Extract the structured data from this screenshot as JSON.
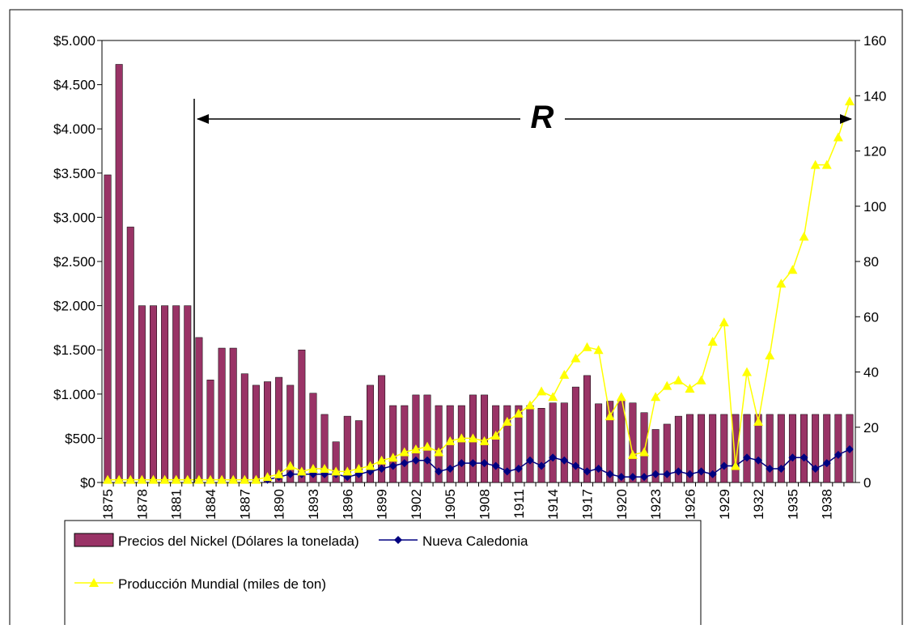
{
  "chart_data": {
    "type": "bar-line",
    "annotation": "R",
    "categories": [
      "1875",
      null,
      null,
      "1878",
      null,
      null,
      "1881",
      null,
      null,
      "1884",
      null,
      null,
      "1887",
      null,
      null,
      "1890",
      null,
      null,
      "1893",
      null,
      null,
      "1896",
      null,
      null,
      "1899",
      null,
      null,
      "1902",
      null,
      null,
      "1905",
      null,
      null,
      "1908",
      null,
      null,
      "1911",
      null,
      null,
      "1914",
      null,
      null,
      "1917",
      null,
      null,
      "1920",
      null,
      null,
      "1923",
      null,
      null,
      "1926",
      null,
      null,
      "1929",
      null,
      null,
      "1932",
      null,
      null,
      "1935",
      null,
      null,
      "1938",
      null,
      null
    ],
    "series": [
      {
        "name": "Precios del Nickel (Dólares la tonelada)",
        "color": "#993366",
        "kind": "bar",
        "axis": "y",
        "values": [
          3480,
          4730,
          2890,
          2000,
          2000,
          2000,
          2000,
          2000,
          1640,
          1160,
          1520,
          1520,
          1230,
          1100,
          1140,
          1190,
          1100,
          1500,
          1010,
          770,
          460,
          750,
          700,
          1100,
          1210,
          870,
          870,
          990,
          990,
          870,
          870,
          870,
          990,
          990,
          870,
          870,
          870,
          870,
          840,
          900,
          900,
          1080,
          1210,
          890,
          920,
          930,
          900,
          790,
          600,
          660,
          750,
          770,
          770,
          770,
          770,
          770,
          770,
          770,
          770,
          770,
          770,
          770,
          770,
          770,
          770,
          770
        ]
      },
      {
        "name": "Nueva Caledonia",
        "color": "#000080",
        "kind": "line",
        "marker": "diamond",
        "axis": "y2",
        "values": [
          null,
          null,
          null,
          null,
          null,
          null,
          null,
          null,
          null,
          null,
          null,
          null,
          null,
          null,
          1,
          2,
          3,
          3,
          3,
          3,
          3,
          2,
          3,
          4,
          5,
          6,
          7,
          8,
          8,
          4,
          5,
          7,
          7,
          7,
          6,
          4,
          5,
          8,
          6,
          9,
          8,
          6,
          4,
          5,
          3,
          2,
          2,
          2,
          3,
          3,
          4,
          3,
          4,
          3,
          6,
          6,
          9,
          8,
          5,
          5,
          9,
          9,
          5,
          7,
          10,
          12
        ]
      },
      {
        "name": "Producción Mundial (miles de ton)",
        "color": "#FFFF00",
        "kind": "line",
        "marker": "triangle",
        "axis": "y2",
        "values": [
          1,
          1,
          1,
          1,
          1,
          1,
          1,
          1,
          1,
          1,
          1,
          1,
          1,
          1,
          2,
          3,
          6,
          4,
          5,
          5,
          4,
          4,
          5,
          6,
          8,
          9,
          11,
          12,
          13,
          11,
          15,
          16,
          16,
          15,
          17,
          22,
          25,
          28,
          33,
          31,
          39,
          45,
          49,
          48,
          24,
          31,
          10,
          11,
          31,
          35,
          37,
          34,
          37,
          51,
          58,
          6,
          40,
          22,
          46,
          72,
          77,
          89,
          115,
          115,
          125,
          138
        ]
      }
    ],
    "ylim": [
      0,
      5000
    ],
    "yticks": [
      {
        "value": 0,
        "label": "$0"
      },
      {
        "value": 500,
        "label": "$500"
      },
      {
        "value": 1000,
        "label": "$1.000"
      },
      {
        "value": 1500,
        "label": "$1.500"
      },
      {
        "value": 2000,
        "label": "$2.000"
      },
      {
        "value": 2500,
        "label": "$2.500"
      },
      {
        "value": 3000,
        "label": "$3.000"
      },
      {
        "value": 3500,
        "label": "$3.500"
      },
      {
        "value": 4000,
        "label": "$4.000"
      },
      {
        "value": 4500,
        "label": "$4.500"
      },
      {
        "value": 5000,
        "label": "$5.000"
      }
    ],
    "y2lim": [
      0,
      160
    ],
    "y2ticks": [
      0,
      20,
      40,
      60,
      80,
      100,
      120,
      140,
      160
    ],
    "grid": false
  }
}
